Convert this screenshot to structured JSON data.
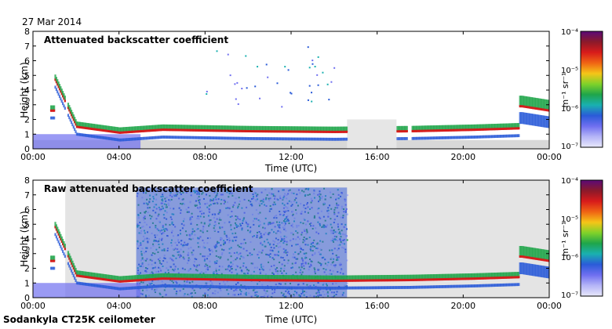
{
  "figure": {
    "date": "27 Mar 2014",
    "footer": "Sodankyla CT25K ceilometer"
  },
  "colorbar": {
    "unit_label": "m⁻¹ sr⁻¹",
    "tick_labels": [
      "10⁻⁴",
      "10⁻⁵",
      "10⁻⁶",
      "10⁻⁷"
    ],
    "colors": [
      "#5b0a78",
      "#8b1a2a",
      "#d81b1b",
      "#f06414",
      "#f5c518",
      "#7fd22a",
      "#1fa54a",
      "#1ab0b0",
      "#2a5bd8",
      "#6f6ff0",
      "#b5b5f7",
      "#e8e8fb"
    ]
  },
  "chart_data": [
    {
      "type": "heatmap",
      "title": "Attenuated backscatter coefficient",
      "xlabel": "Time (UTC)",
      "ylabel": "Height (km)",
      "x_ticks": [
        "00:00",
        "04:00",
        "08:00",
        "12:00",
        "16:00",
        "20:00",
        "00:00"
      ],
      "y_ticks": [
        "0",
        "1",
        "2",
        "3",
        "4",
        "5",
        "6",
        "7",
        "8"
      ],
      "xlim_hours": [
        0,
        24
      ],
      "ylim_km": [
        0,
        8
      ],
      "colorscale": "log",
      "clim": [
        1e-07,
        0.0001
      ],
      "cloud_layer_height_km": [
        [
          1.0,
          4.7
        ],
        [
          2.0,
          1.5
        ],
        [
          4.0,
          1.1
        ],
        [
          6.0,
          1.3
        ],
        [
          10.0,
          1.2
        ],
        [
          14.0,
          1.15
        ],
        [
          17.5,
          1.2
        ],
        [
          20.5,
          1.3
        ],
        [
          22.6,
          1.4
        ],
        [
          22.7,
          2.9
        ],
        [
          24.0,
          2.6
        ]
      ],
      "gaps_hours": [
        [
          14.6,
          16.9
        ],
        [
          17.4,
          17.6
        ]
      ]
    },
    {
      "type": "heatmap",
      "title": "Raw attenuated backscatter coefficient",
      "xlabel": "Time (UTC)",
      "ylabel": "Height (km)",
      "x_ticks": [
        "00:00",
        "04:00",
        "08:00",
        "12:00",
        "16:00",
        "20:00",
        "00:00"
      ],
      "y_ticks": [
        "0",
        "1",
        "2",
        "3",
        "4",
        "5",
        "6",
        "7",
        "8"
      ],
      "xlim_hours": [
        0,
        24
      ],
      "ylim_km": [
        0,
        8
      ],
      "colorscale": "log",
      "clim": [
        1e-07,
        0.0001
      ],
      "cloud_layer_height_km": [
        [
          1.0,
          4.8
        ],
        [
          2.0,
          1.5
        ],
        [
          4.0,
          1.1
        ],
        [
          6.0,
          1.3
        ],
        [
          10.0,
          1.2
        ],
        [
          14.0,
          1.15
        ],
        [
          17.5,
          1.2
        ],
        [
          20.5,
          1.3
        ],
        [
          22.6,
          1.4
        ],
        [
          22.7,
          2.8
        ],
        [
          24.0,
          2.5
        ]
      ],
      "noise_region_hours": [
        4.8,
        14.6
      ]
    }
  ]
}
